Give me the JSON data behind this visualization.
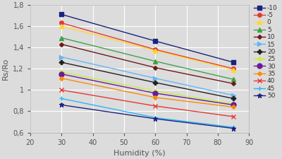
{
  "xlabel": "Humidity (%)",
  "ylabel": "Rs/Ro",
  "xlim": [
    20,
    90
  ],
  "ylim": [
    0.6,
    1.8
  ],
  "xticks": [
    20,
    30,
    40,
    50,
    60,
    70,
    80,
    90
  ],
  "yticks": [
    0.6,
    0.8,
    1.0,
    1.2,
    1.4,
    1.6,
    1.8
  ],
  "ytick_labels": [
    "0,6",
    "0,8",
    "1",
    "1,2",
    "1,4",
    "1,6",
    "1,8"
  ],
  "ytick_colors": [
    "#444444",
    "#444444",
    "#cc8800",
    "#444444",
    "#444444",
    "#444444",
    "#444444"
  ],
  "x": [
    30,
    60,
    85
  ],
  "series": [
    {
      "label": "-10",
      "color": "#1a237e",
      "marker": "s",
      "ms": 4,
      "values": [
        1.71,
        1.46,
        1.26
      ]
    },
    {
      "label": "-5",
      "color": "#e53935",
      "marker": "o",
      "ms": 4,
      "values": [
        1.63,
        1.38,
        1.2
      ]
    },
    {
      "label": "0",
      "color": "#fdd835",
      "marker": "^",
      "ms": 4,
      "values": [
        1.6,
        1.37,
        1.19
      ]
    },
    {
      "label": "5",
      "color": "#43a047",
      "marker": "^",
      "ms": 4,
      "values": [
        1.49,
        1.27,
        1.1
      ]
    },
    {
      "label": "10",
      "color": "#6d1a1a",
      "marker": "D",
      "ms": 3,
      "values": [
        1.43,
        1.21,
        1.06
      ]
    },
    {
      "label": "15",
      "color": "#64b5f6",
      "marker": ">",
      "ms": 4,
      "values": [
        1.31,
        1.11,
        0.95
      ]
    },
    {
      "label": "20",
      "color": "#212121",
      "marker": "P",
      "ms": 4,
      "values": [
        1.26,
        1.07,
        0.92
      ]
    },
    {
      "label": "25",
      "color": "#c6ef3a",
      "marker": "D",
      "ms": 3,
      "values": [
        1.17,
        0.99,
        0.87
      ]
    },
    {
      "label": "30",
      "color": "#6a1b9a",
      "marker": "o",
      "ms": 5,
      "values": [
        1.15,
        0.97,
        0.86
      ]
    },
    {
      "label": "35",
      "color": "#fb8c00",
      "marker": "D",
      "ms": 3,
      "values": [
        1.11,
        0.93,
        0.84
      ]
    },
    {
      "label": "40",
      "color": "#e53935",
      "marker": "x",
      "ms": 5,
      "values": [
        1.0,
        0.85,
        0.75
      ]
    },
    {
      "label": "45",
      "color": "#29b6f6",
      "marker": "+",
      "ms": 5,
      "values": [
        0.92,
        0.74,
        0.65
      ]
    },
    {
      "label": "50",
      "color": "#1a237e",
      "marker": "*",
      "ms": 5,
      "values": [
        0.86,
        0.73,
        0.64
      ]
    }
  ],
  "bg_color": "#dcdcdc",
  "plot_bg": "#dcdcdc",
  "grid_color": "#ffffff",
  "tick_fontsize": 7,
  "axis_label_fontsize": 8,
  "legend_fontsize": 6.5,
  "linewidth": 1.0
}
